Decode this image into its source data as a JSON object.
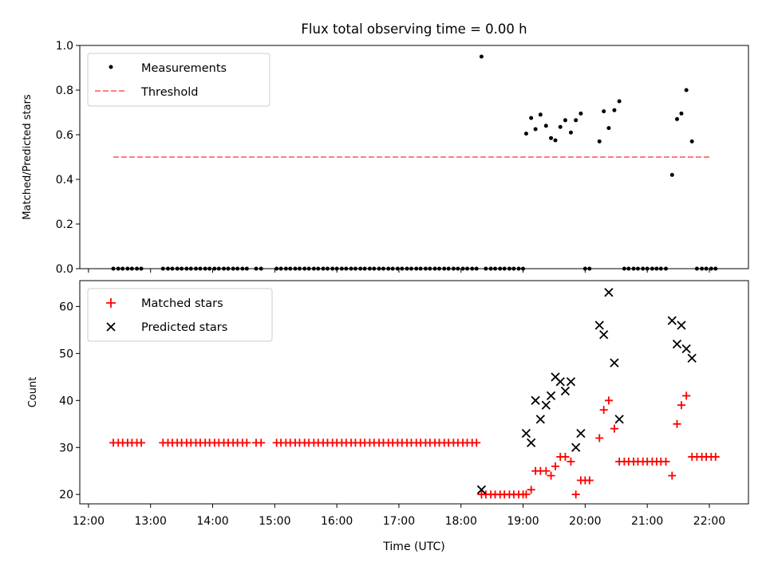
{
  "title": "Flux total observing time = 0.00 h",
  "chart_data": [
    {
      "type": "scatter",
      "ylabel": "Matched/Predicted stars",
      "xlim": [
        11.86,
        22.63
      ],
      "ylim": [
        0.0,
        1.0
      ],
      "yticks": [
        "0.0",
        "0.2",
        "0.4",
        "0.6",
        "0.8",
        "1.0"
      ],
      "legend_position": "top-left",
      "series": [
        {
          "name": "Measurements",
          "marker": "dot",
          "color": "#000000",
          "x": [
            12.4,
            12.48,
            12.55,
            12.63,
            12.7,
            12.78,
            12.85,
            13.2,
            13.28,
            13.35,
            13.43,
            13.5,
            13.58,
            13.65,
            13.73,
            13.8,
            13.88,
            13.95,
            14.03,
            14.1,
            14.18,
            14.25,
            14.33,
            14.4,
            14.48,
            14.55,
            14.7,
            14.78,
            15.03,
            15.1,
            15.18,
            15.25,
            15.33,
            15.4,
            15.48,
            15.55,
            15.63,
            15.7,
            15.78,
            15.85,
            15.93,
            16.0,
            16.08,
            16.15,
            16.23,
            16.3,
            16.38,
            16.45,
            16.53,
            16.6,
            16.68,
            16.75,
            16.83,
            16.9,
            16.98,
            17.05,
            17.13,
            17.2,
            17.28,
            17.35,
            17.43,
            17.5,
            17.58,
            17.65,
            17.73,
            17.8,
            17.88,
            17.95,
            18.03,
            18.1,
            18.18,
            18.25,
            18.33,
            18.4,
            18.48,
            18.55,
            18.63,
            18.7,
            18.78,
            18.85,
            18.93,
            19.0,
            19.05,
            19.13,
            19.2,
            19.28,
            19.37,
            19.45,
            19.52,
            19.6,
            19.68,
            19.77,
            19.85,
            19.93,
            20.0,
            20.07,
            20.23,
            20.3,
            20.38,
            20.47,
            20.55,
            20.63,
            20.7,
            20.78,
            20.85,
            20.93,
            21.0,
            21.08,
            21.15,
            21.22,
            21.3,
            21.4,
            21.48,
            21.55,
            21.63,
            21.72,
            21.8,
            21.88,
            21.95,
            22.03,
            22.1
          ],
          "y": [
            0,
            0,
            0,
            0,
            0,
            0,
            0,
            0,
            0,
            0,
            0,
            0,
            0,
            0,
            0,
            0,
            0,
            0,
            0,
            0,
            0,
            0,
            0,
            0,
            0,
            0,
            0,
            0,
            0,
            0,
            0,
            0,
            0,
            0,
            0,
            0,
            0,
            0,
            0,
            0,
            0,
            0,
            0,
            0,
            0,
            0,
            0,
            0,
            0,
            0,
            0,
            0,
            0,
            0,
            0,
            0,
            0,
            0,
            0,
            0,
            0,
            0,
            0,
            0,
            0,
            0,
            0,
            0,
            0,
            0,
            0,
            0,
            0.95,
            0,
            0,
            0,
            0,
            0,
            0,
            0,
            0,
            0,
            0.605,
            0.675,
            0.625,
            0.69,
            0.64,
            0.585,
            0.575,
            0.635,
            0.665,
            0.61,
            0.665,
            0.695,
            0,
            0,
            0.57,
            0.705,
            0.63,
            0.71,
            0.75,
            0,
            0,
            0,
            0,
            0,
            0,
            0,
            0,
            0,
            0,
            0.42,
            0.67,
            0.695,
            0.8,
            0.57,
            0,
            0,
            0,
            0,
            0
          ]
        },
        {
          "name": "Threshold",
          "style": "dashed",
          "color": "#ff7f7f",
          "x": [
            12.4,
            22.03
          ],
          "y": [
            0.5,
            0.5
          ]
        }
      ]
    },
    {
      "type": "scatter",
      "xlabel": "Time (UTC)",
      "ylabel": "Count",
      "xlim": [
        11.86,
        22.63
      ],
      "ylim": [
        18,
        65.5
      ],
      "xtick_values": [
        12,
        13,
        14,
        15,
        16,
        17,
        18,
        19,
        20,
        21,
        22
      ],
      "xticks": [
        "12:00",
        "13:00",
        "14:00",
        "15:00",
        "16:00",
        "17:00",
        "18:00",
        "19:00",
        "20:00",
        "21:00",
        "22:00"
      ],
      "ytick_values": [
        20,
        30,
        40,
        50,
        60
      ],
      "yticks": [
        "20",
        "30",
        "40",
        "50",
        "60"
      ],
      "legend_position": "top-left",
      "series": [
        {
          "name": "Matched stars",
          "marker": "plus",
          "color": "#ff0000",
          "x": [
            12.4,
            12.48,
            12.55,
            12.63,
            12.7,
            12.78,
            12.85,
            13.2,
            13.28,
            13.35,
            13.43,
            13.5,
            13.58,
            13.65,
            13.73,
            13.8,
            13.88,
            13.95,
            14.03,
            14.1,
            14.18,
            14.25,
            14.33,
            14.4,
            14.48,
            14.55,
            14.7,
            14.78,
            15.03,
            15.1,
            15.18,
            15.25,
            15.33,
            15.4,
            15.48,
            15.55,
            15.63,
            15.7,
            15.78,
            15.85,
            15.93,
            16.0,
            16.08,
            16.15,
            16.23,
            16.3,
            16.38,
            16.45,
            16.53,
            16.6,
            16.68,
            16.75,
            16.83,
            16.9,
            16.98,
            17.05,
            17.13,
            17.2,
            17.28,
            17.35,
            17.43,
            17.5,
            17.58,
            17.65,
            17.73,
            17.8,
            17.88,
            17.95,
            18.03,
            18.1,
            18.18,
            18.25,
            18.33,
            18.4,
            18.48,
            18.55,
            18.63,
            18.7,
            18.78,
            18.85,
            18.93,
            19.0,
            19.05,
            19.13,
            19.2,
            19.28,
            19.37,
            19.45,
            19.52,
            19.6,
            19.68,
            19.77,
            19.85,
            19.93,
            20.0,
            20.07,
            20.23,
            20.3,
            20.38,
            20.47,
            20.55,
            20.63,
            20.7,
            20.78,
            20.85,
            20.93,
            21.0,
            21.08,
            21.15,
            21.22,
            21.3,
            21.4,
            21.48,
            21.55,
            21.63,
            21.72,
            21.8,
            21.88,
            21.95,
            22.03,
            22.1
          ],
          "y": [
            31,
            31,
            31,
            31,
            31,
            31,
            31,
            31,
            31,
            31,
            31,
            31,
            31,
            31,
            31,
            31,
            31,
            31,
            31,
            31,
            31,
            31,
            31,
            31,
            31,
            31,
            31,
            31,
            31,
            31,
            31,
            31,
            31,
            31,
            31,
            31,
            31,
            31,
            31,
            31,
            31,
            31,
            31,
            31,
            31,
            31,
            31,
            31,
            31,
            31,
            31,
            31,
            31,
            31,
            31,
            31,
            31,
            31,
            31,
            31,
            31,
            31,
            31,
            31,
            31,
            31,
            31,
            31,
            31,
            31,
            31,
            31,
            20,
            20,
            20,
            20,
            20,
            20,
            20,
            20,
            20,
            20,
            20,
            21,
            25,
            25,
            25,
            24,
            26,
            28,
            28,
            27,
            20,
            23,
            23,
            23,
            32,
            38,
            40,
            34,
            27,
            27,
            27,
            27,
            27,
            27,
            27,
            27,
            27,
            27,
            27,
            24,
            35,
            39,
            41,
            28,
            28,
            28,
            28,
            28,
            28
          ]
        },
        {
          "name": "Predicted stars",
          "marker": "x",
          "color": "#000000",
          "x": [
            18.33,
            19.05,
            19.13,
            19.2,
            19.28,
            19.37,
            19.45,
            19.52,
            19.6,
            19.68,
            19.77,
            19.85,
            19.93,
            20.23,
            20.3,
            20.38,
            20.47,
            20.55,
            21.4,
            21.48,
            21.55,
            21.63,
            21.72
          ],
          "y": [
            21,
            33,
            31,
            40,
            36,
            39,
            41,
            45,
            44,
            42,
            44,
            30,
            33,
            56,
            54,
            63,
            48,
            36,
            57,
            52,
            56,
            51,
            49
          ]
        }
      ]
    }
  ]
}
